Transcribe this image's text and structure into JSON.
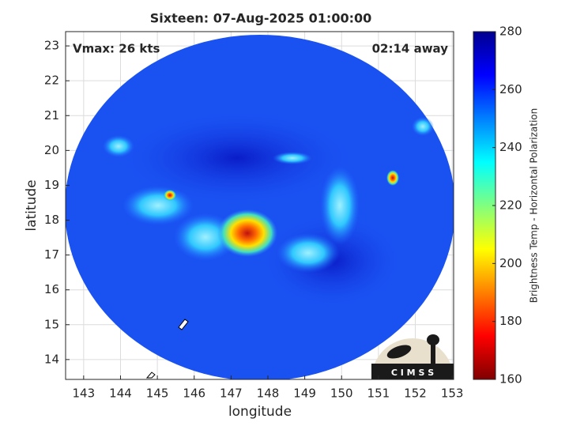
{
  "chart_data": {
    "type": "image",
    "title": "Sixteen: 07-Aug-2025 01:00:00",
    "annotations": [
      "Vmax: 26 kts",
      "02:14 away"
    ],
    "x_label": "longitude",
    "y_label": "latitude",
    "xlim": [
      142.51,
      153.04
    ],
    "xticks": [
      143,
      144,
      145,
      146,
      147,
      148,
      149,
      150,
      151,
      152,
      153
    ],
    "ylim": [
      13.43,
      23.41
    ],
    "yticks": [
      14,
      15,
      16,
      17,
      18,
      19,
      20,
      21,
      22,
      23
    ],
    "grid": true,
    "colorbar": {
      "label": "Brightness Temp - Horizontal Polarization",
      "lim": [
        160,
        280
      ],
      "ticks": [
        160,
        180,
        200,
        220,
        240,
        260,
        280
      ],
      "colormap": "jet"
    },
    "logo_text": "C I M S S"
  }
}
